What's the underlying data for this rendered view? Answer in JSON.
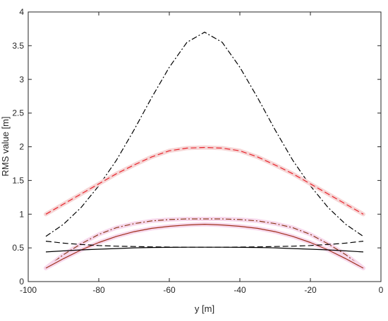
{
  "chart_data": {
    "type": "line",
    "title": "",
    "xlabel": "y [m]",
    "ylabel": "RMS value [m]",
    "xlim": [
      -100,
      0
    ],
    "ylim": [
      0,
      4
    ],
    "xticks": [
      -100,
      -80,
      -60,
      -40,
      -20,
      0
    ],
    "yticks": [
      0,
      0.5,
      1,
      1.5,
      2,
      2.5,
      3,
      3.5,
      4
    ],
    "xtick_labels": [
      "-100",
      "-80",
      "-60",
      "-40",
      "-20",
      "0"
    ],
    "ytick_labels": [
      "0",
      "0.5",
      "1",
      "1.5",
      "2",
      "2.5",
      "3",
      "3.5",
      "4"
    ],
    "grid": false,
    "x": [
      -95,
      -90,
      -85,
      -80,
      -75,
      -70,
      -65,
      -60,
      -55,
      -50,
      -45,
      -40,
      -35,
      -30,
      -25,
      -20,
      -15,
      -10,
      -5
    ],
    "series": [
      {
        "color": "#000000",
        "style": "dashdot",
        "values": [
          0.67,
          0.85,
          1.1,
          1.42,
          1.8,
          2.25,
          2.73,
          3.18,
          3.55,
          3.7,
          3.55,
          3.18,
          2.73,
          2.25,
          1.8,
          1.42,
          1.1,
          0.85,
          0.67
        ]
      },
      {
        "color": "#e8242c",
        "style": "dashed",
        "halo": "#f6d6d6",
        "values": [
          1.0,
          1.15,
          1.3,
          1.45,
          1.6,
          1.73,
          1.85,
          1.94,
          1.98,
          1.99,
          1.98,
          1.94,
          1.85,
          1.73,
          1.6,
          1.45,
          1.3,
          1.15,
          1.0
        ]
      },
      {
        "color": "#8b3a1a",
        "style": "dashdot",
        "halo": "#f7d8ec",
        "values": [
          0.2,
          0.4,
          0.56,
          0.7,
          0.8,
          0.86,
          0.9,
          0.92,
          0.93,
          0.93,
          0.93,
          0.92,
          0.9,
          0.86,
          0.8,
          0.7,
          0.56,
          0.4,
          0.2
        ]
      },
      {
        "color": "#a0301c",
        "style": "solid",
        "halo": "#f7d8ec",
        "values": [
          0.2,
          0.34,
          0.47,
          0.58,
          0.67,
          0.74,
          0.79,
          0.82,
          0.84,
          0.85,
          0.84,
          0.82,
          0.79,
          0.74,
          0.67,
          0.58,
          0.47,
          0.34,
          0.2
        ]
      },
      {
        "color": "#000000",
        "style": "dashed",
        "values": [
          0.6,
          0.57,
          0.55,
          0.535,
          0.525,
          0.52,
          0.515,
          0.512,
          0.51,
          0.51,
          0.51,
          0.512,
          0.515,
          0.52,
          0.525,
          0.535,
          0.55,
          0.57,
          0.6
        ]
      },
      {
        "color": "#000000",
        "style": "solid",
        "values": [
          0.44,
          0.455,
          0.47,
          0.48,
          0.49,
          0.5,
          0.505,
          0.508,
          0.51,
          0.51,
          0.51,
          0.508,
          0.505,
          0.5,
          0.49,
          0.48,
          0.47,
          0.455,
          0.44
        ]
      }
    ]
  }
}
